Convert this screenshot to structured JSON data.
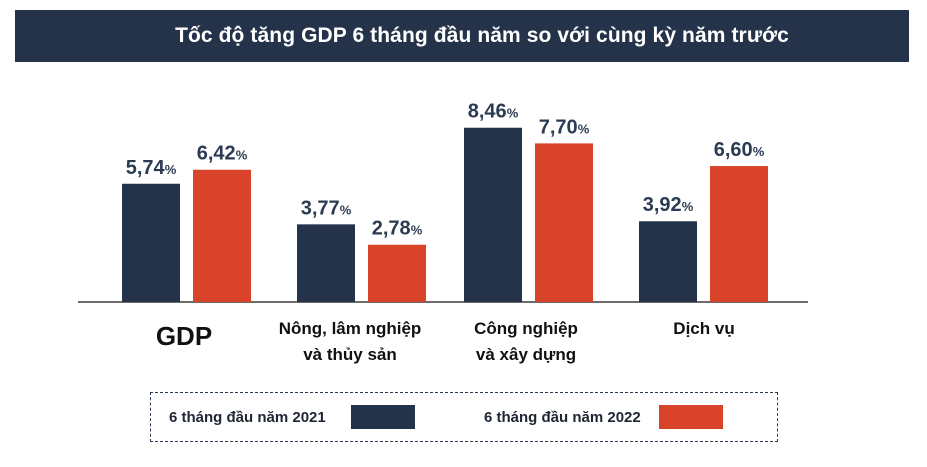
{
  "chart_data": {
    "type": "bar",
    "title": "Tốc độ tăng GDP 6 tháng đầu năm so với cùng kỳ năm trước",
    "categories": [
      "GDP",
      "Nông, lâm nghiệp\nvà thủy sản",
      "Công nghiệp\nvà xây dựng",
      "Dịch vụ"
    ],
    "series": [
      {
        "name": "6 tháng đầu năm 2021",
        "color": "#243349",
        "values": [
          5.74,
          3.77,
          8.46,
          3.92
        ],
        "labels": [
          "5,74",
          "3,77",
          "8,46",
          "3,92"
        ]
      },
      {
        "name": "6 tháng đầu năm 2022",
        "color": "#d9432a",
        "values": [
          6.42,
          2.78,
          7.7,
          6.6
        ],
        "labels": [
          "6,42",
          "2,78",
          "7,70",
          "6,60"
        ]
      }
    ],
    "unit_suffix": "%",
    "ylim": [
      0,
      10
    ],
    "grid": false,
    "legend_position": "bottom"
  }
}
